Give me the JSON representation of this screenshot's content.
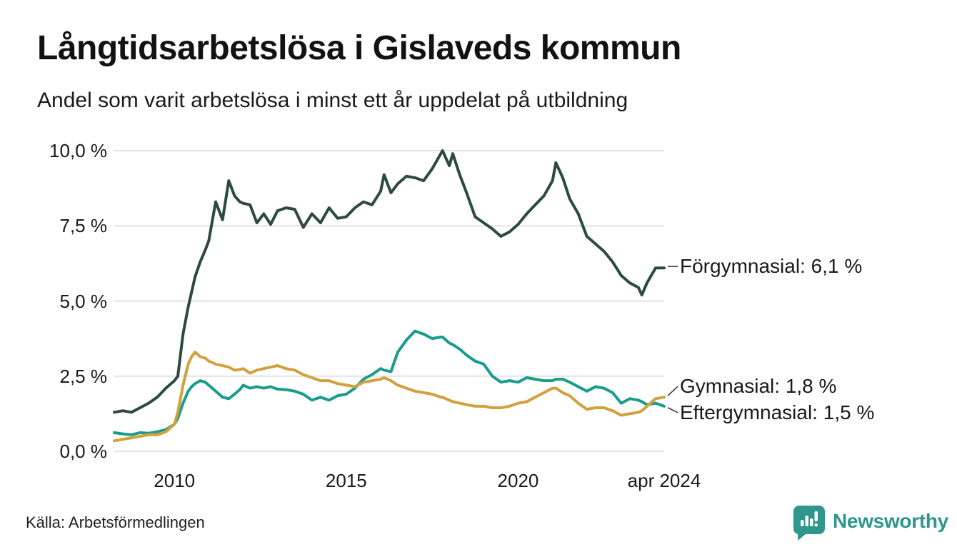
{
  "header": {
    "title": "Långtidsarbetslösa i Gislaveds kommun",
    "subtitle": "Andel som varit arbetslösa i minst ett år uppdelat på utbildning"
  },
  "footer": {
    "source": "Källa: Arbetsförmedlingen",
    "brand": {
      "name": "Newsworthy",
      "color": "#2e968b",
      "icon": "newsworthy-speech-bubble-bar-chart-icon"
    }
  },
  "colors": {
    "background": "#ffffff",
    "grid": "#e3e3e3",
    "text": "#1a1a1a",
    "connector": "#333333"
  },
  "chart_data": {
    "type": "line",
    "title": "Långtidsarbetslösa i Gislaveds kommun",
    "subtitle": "Andel som varit arbetslösa i minst ett år uppdelat på utbildning",
    "x_unit": "decimal_year",
    "xlim": [
      2008.25,
      2024.25
    ],
    "ylim": [
      0,
      10
    ],
    "grid": "horizontal",
    "legend_position": "end-of-line-labels",
    "y_ticks": [
      {
        "value": 0,
        "label": "0,0 %"
      },
      {
        "value": 2.5,
        "label": "2,5 %"
      },
      {
        "value": 5,
        "label": "5,0 %"
      },
      {
        "value": 7.5,
        "label": "7,5 %"
      },
      {
        "value": 10,
        "label": "10,0 %"
      }
    ],
    "x_ticks": [
      {
        "value": 2010,
        "label": "2010"
      },
      {
        "value": 2015,
        "label": "2015"
      },
      {
        "value": 2020,
        "label": "2020"
      },
      {
        "value": 2024.25,
        "label": "apr 2024"
      }
    ],
    "x": [
      2008.25,
      2008.5,
      2008.75,
      2009.0,
      2009.25,
      2009.5,
      2009.75,
      2010.0,
      2010.1,
      2010.25,
      2010.4,
      2010.5,
      2010.6,
      2010.75,
      2010.9,
      2011.0,
      2011.2,
      2011.4,
      2011.58,
      2011.75,
      2011.9,
      2012.0,
      2012.2,
      2012.4,
      2012.6,
      2012.8,
      2013.0,
      2013.25,
      2013.5,
      2013.75,
      2014.0,
      2014.25,
      2014.5,
      2014.75,
      2015.0,
      2015.25,
      2015.5,
      2015.75,
      2016.0,
      2016.1,
      2016.3,
      2016.5,
      2016.75,
      2017.0,
      2017.25,
      2017.5,
      2017.75,
      2017.8,
      2018.0,
      2018.1,
      2018.3,
      2018.5,
      2018.75,
      2019.0,
      2019.25,
      2019.5,
      2019.75,
      2020.0,
      2020.25,
      2020.5,
      2020.75,
      2021.0,
      2021.1,
      2021.3,
      2021.5,
      2021.75,
      2022.0,
      2022.25,
      2022.5,
      2022.75,
      2023.0,
      2023.25,
      2023.5,
      2023.6,
      2023.75,
      2024.0,
      2024.25
    ],
    "series": [
      {
        "name": "Förgymnasial",
        "color": "#2c4a42",
        "end_value": 6.1,
        "end_label": "Förgymnasial: 6,1 %",
        "values": [
          1.3,
          1.35,
          1.3,
          1.45,
          1.6,
          1.8,
          2.1,
          2.35,
          2.5,
          3.9,
          4.8,
          5.3,
          5.8,
          6.3,
          6.7,
          7.0,
          8.3,
          7.7,
          9.0,
          8.5,
          8.3,
          8.25,
          8.2,
          7.6,
          7.9,
          7.55,
          8.0,
          8.1,
          8.05,
          7.45,
          7.9,
          7.6,
          8.1,
          7.75,
          7.8,
          8.1,
          8.3,
          8.2,
          8.65,
          9.2,
          8.6,
          8.9,
          9.15,
          9.1,
          9.0,
          9.4,
          9.9,
          10.0,
          9.5,
          9.9,
          9.2,
          8.6,
          7.8,
          7.6,
          7.4,
          7.15,
          7.3,
          7.55,
          7.9,
          8.2,
          8.5,
          9.0,
          9.6,
          9.1,
          8.4,
          7.9,
          7.15,
          6.9,
          6.65,
          6.3,
          5.85,
          5.6,
          5.45,
          5.2,
          5.6,
          6.1,
          6.1
        ]
      },
      {
        "name": "Eftergymnasial",
        "color": "#1a9c8b",
        "end_value": 1.5,
        "end_label": "Eftergymnasial: 1,5 %",
        "values": [
          0.62,
          0.58,
          0.55,
          0.62,
          0.6,
          0.65,
          0.72,
          0.9,
          1.1,
          1.6,
          2.0,
          2.15,
          2.25,
          2.35,
          2.3,
          2.2,
          2.0,
          1.8,
          1.75,
          1.9,
          2.05,
          2.2,
          2.1,
          2.15,
          2.1,
          2.15,
          2.07,
          2.05,
          2.0,
          1.9,
          1.7,
          1.8,
          1.7,
          1.85,
          1.9,
          2.1,
          2.4,
          2.55,
          2.75,
          2.7,
          2.65,
          3.3,
          3.7,
          4.0,
          3.9,
          3.75,
          3.8,
          3.8,
          3.6,
          3.55,
          3.4,
          3.2,
          3.0,
          2.9,
          2.5,
          2.3,
          2.35,
          2.3,
          2.45,
          2.4,
          2.35,
          2.35,
          2.4,
          2.4,
          2.3,
          2.15,
          2.0,
          2.15,
          2.1,
          1.95,
          1.6,
          1.75,
          1.7,
          1.65,
          1.55,
          1.6,
          1.5
        ]
      },
      {
        "name": "Gymnasial",
        "color": "#d1a13f",
        "end_value": 1.8,
        "end_label": "Gymnasial: 1,8 %",
        "values": [
          0.35,
          0.4,
          0.45,
          0.5,
          0.55,
          0.55,
          0.65,
          0.9,
          1.3,
          2.2,
          2.9,
          3.15,
          3.3,
          3.15,
          3.1,
          3.0,
          2.9,
          2.85,
          2.8,
          2.7,
          2.72,
          2.75,
          2.6,
          2.7,
          2.75,
          2.8,
          2.85,
          2.75,
          2.7,
          2.55,
          2.45,
          2.35,
          2.35,
          2.25,
          2.2,
          2.15,
          2.3,
          2.35,
          2.4,
          2.45,
          2.35,
          2.2,
          2.1,
          2.0,
          1.95,
          1.9,
          1.8,
          1.8,
          1.7,
          1.65,
          1.6,
          1.55,
          1.5,
          1.5,
          1.45,
          1.45,
          1.5,
          1.6,
          1.65,
          1.8,
          1.95,
          2.1,
          2.1,
          1.95,
          1.85,
          1.6,
          1.4,
          1.45,
          1.45,
          1.35,
          1.2,
          1.25,
          1.3,
          1.35,
          1.5,
          1.75,
          1.8
        ]
      }
    ]
  }
}
